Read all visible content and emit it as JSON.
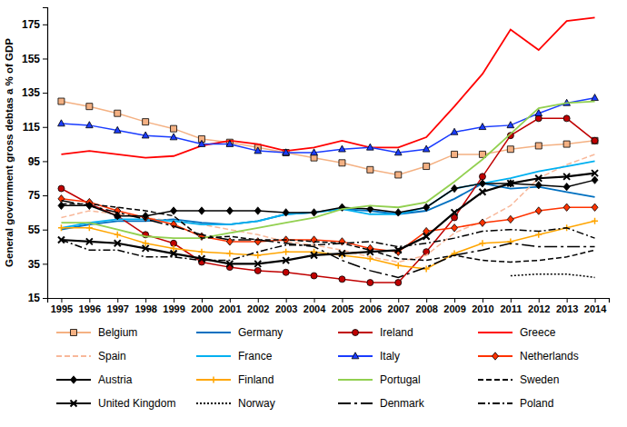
{
  "chart_data": {
    "type": "line",
    "y_label": "General government gross debtas a % of GDP",
    "x": [
      1995,
      1996,
      1997,
      1998,
      1999,
      2000,
      2001,
      2002,
      2003,
      2004,
      2005,
      2006,
      2007,
      2008,
      2009,
      2010,
      2011,
      2012,
      2013,
      2014
    ],
    "xlim": [
      1994.5,
      2014.5
    ],
    "xticks": [
      1995,
      1996,
      1997,
      1998,
      1999,
      2000,
      2001,
      2002,
      2003,
      2004,
      2005,
      2006,
      2007,
      2008,
      2009,
      2010,
      2011,
      2012,
      2013,
      2014
    ],
    "ylim": [
      15,
      185
    ],
    "yticks": [
      15,
      35,
      55,
      75,
      95,
      115,
      135,
      155,
      175
    ],
    "grid": false,
    "legend": "bottom",
    "series": [
      {
        "name": "Belgium",
        "color": "#f4b183",
        "marker": "square",
        "line_style": "solid",
        "values": [
          130,
          127,
          123,
          118,
          114,
          108,
          106,
          103,
          100,
          97,
          94,
          90,
          87,
          92,
          99,
          99,
          102,
          104,
          105,
          107
        ]
      },
      {
        "name": "Germany",
        "color": "#0070c0",
        "line_style": "solid",
        "values": [
          55,
          58,
          60,
          60,
          61,
          59,
          58,
          60,
          64,
          65,
          67,
          66,
          64,
          66,
          73,
          82,
          79,
          80,
          77,
          74
        ]
      },
      {
        "name": "Ireland",
        "color": "#c00000",
        "marker": "circle",
        "line_style": "solid",
        "values": [
          79,
          70,
          63,
          52,
          47,
          36,
          33,
          31,
          30,
          28,
          26,
          24,
          24,
          42,
          62,
          86,
          110,
          120,
          120,
          107
        ]
      },
      {
        "name": "Greece",
        "color": "#ff0000",
        "line_style": "solid",
        "values": [
          99,
          101,
          99,
          97,
          98,
          104,
          107,
          105,
          101,
          103,
          107,
          103,
          103,
          109,
          127,
          146,
          172,
          160,
          177,
          179
        ]
      },
      {
        "name": "Spain",
        "color": "#f8b89a",
        "line_style": "dashed",
        "values": [
          62,
          66,
          64,
          62,
          60,
          58,
          55,
          52,
          48,
          46,
          43,
          39,
          36,
          40,
          53,
          60,
          69,
          85,
          93,
          99
        ]
      },
      {
        "name": "France",
        "color": "#00b0f0",
        "line_style": "solid",
        "values": [
          56,
          59,
          61,
          61,
          60,
          58,
          58,
          60,
          64,
          65,
          67,
          64,
          64,
          68,
          79,
          82,
          85,
          89,
          92,
          95
        ]
      },
      {
        "name": "Italy",
        "color": "#1a3cff",
        "marker": "triangle",
        "line_style": "solid",
        "values": [
          117,
          116,
          113,
          110,
          109,
          105,
          105,
          101,
          100,
          100,
          102,
          103,
          100,
          102,
          112,
          115,
          116,
          123,
          129,
          132
        ]
      },
      {
        "name": "Netherlands",
        "color": "#ff3300",
        "marker": "diamond",
        "line_style": "solid",
        "values": [
          73,
          71,
          66,
          62,
          58,
          51,
          48,
          48,
          49,
          49,
          48,
          44,
          42,
          54,
          56,
          59,
          61,
          66,
          68,
          68
        ]
      },
      {
        "name": "Austria",
        "color": "#000000",
        "marker": "diamond",
        "line_style": "solid",
        "values": [
          69,
          69,
          63,
          63,
          66,
          66,
          66,
          66,
          65,
          65,
          68,
          67,
          65,
          68,
          79,
          82,
          82,
          81,
          80,
          84
        ]
      },
      {
        "name": "Finland",
        "color": "#ffa500",
        "marker": "plus",
        "line_style": "solid",
        "values": [
          56,
          56,
          52,
          47,
          44,
          42,
          41,
          40,
          42,
          42,
          40,
          38,
          34,
          32,
          41,
          47,
          48,
          52,
          56,
          60
        ]
      },
      {
        "name": "Portugal",
        "color": "#92d050",
        "line_style": "solid",
        "values": [
          59,
          59,
          55,
          51,
          50,
          50,
          53,
          56,
          59,
          62,
          67,
          69,
          68,
          71,
          83,
          96,
          111,
          126,
          129,
          130
        ]
      },
      {
        "name": "Sweden",
        "color": "#000000",
        "line_style": "dashed",
        "values": [
          70,
          70,
          68,
          66,
          63,
          50,
          51,
          49,
          49,
          48,
          47,
          43,
          38,
          37,
          40,
          37,
          36,
          37,
          39,
          43
        ]
      },
      {
        "name": "United Kingdom",
        "color": "#000000",
        "marker": "x",
        "line_style": "solid",
        "values": [
          49,
          48,
          47,
          44,
          41,
          38,
          35,
          35,
          37,
          40,
          41,
          42,
          43,
          51,
          65,
          77,
          82,
          85,
          86,
          88
        ]
      },
      {
        "name": "Norway",
        "color": "#000000",
        "line_style": "dotted",
        "values": [
          null,
          null,
          null,
          null,
          null,
          null,
          null,
          null,
          null,
          null,
          null,
          null,
          null,
          null,
          null,
          null,
          28,
          29,
          29,
          27
        ]
      },
      {
        "name": "Denmark",
        "color": "#000000",
        "line_style": "longdashdot",
        "values": [
          72,
          69,
          65,
          61,
          57,
          52,
          49,
          49,
          47,
          45,
          37,
          31,
          27,
          33,
          40,
          43,
          47,
          45,
          45,
          45
        ]
      },
      {
        "name": "Poland",
        "color": "#000000",
        "line_style": "dashdot",
        "values": [
          49,
          43,
          43,
          39,
          39,
          37,
          37,
          42,
          46,
          46,
          47,
          48,
          45,
          47,
          50,
          54,
          55,
          54,
          56,
          50
        ]
      }
    ]
  }
}
